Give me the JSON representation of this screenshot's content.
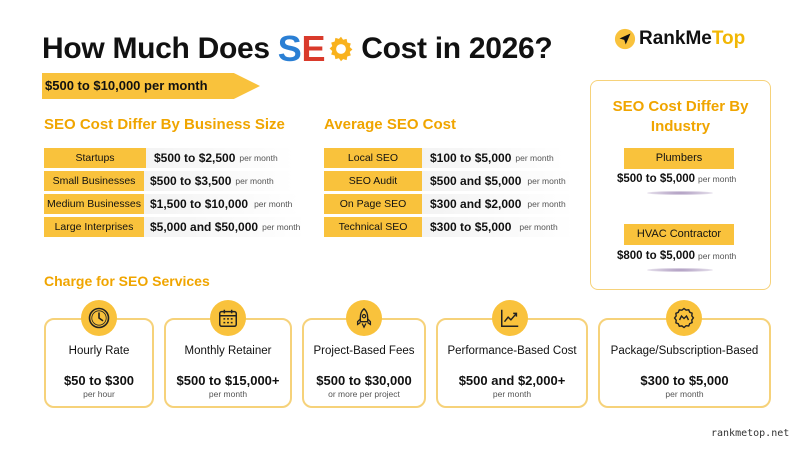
{
  "header": {
    "title_before": "How Much Does",
    "title_s": "S",
    "title_e": "E",
    "title_after": "Cost in 2026?",
    "brand_rank": "RankMe",
    "brand_top": "Top",
    "range": "$500 to $10,000 per month"
  },
  "business_size": {
    "heading": "SEO Cost Differ By Business Size",
    "rows": [
      {
        "label": "Startups",
        "price": "$500 to $2,500",
        "per": "per month"
      },
      {
        "label": "Small Businesses",
        "price": "$500 to $3,500",
        "per": "per month"
      },
      {
        "label": "Medium Businesses",
        "price": "$1,500 to $10,000",
        "per": "per month"
      },
      {
        "label": "Large Interprises",
        "price": "$5,000 and $50,000",
        "per": "per month"
      }
    ]
  },
  "average_cost": {
    "heading": "Average SEO Cost",
    "rows": [
      {
        "label": "Local SEO",
        "price": "$100 to $5,000",
        "per": "per month"
      },
      {
        "label": "SEO Audit",
        "price": "$500 and $5,000",
        "per": "per month"
      },
      {
        "label": "On Page SEO",
        "price": "$300 and $2,000",
        "per": "per month"
      },
      {
        "label": "Technical SEO",
        "price": "$300 to $5,000",
        "per": "per month"
      }
    ]
  },
  "industry": {
    "heading": "SEO Cost Differ By Industry",
    "items": [
      {
        "label": "Plumbers",
        "price": "$500 to $5,000",
        "per": "per month"
      },
      {
        "label": "HVAC Contractor",
        "price": "$800 to $5,000",
        "per": "per month"
      }
    ]
  },
  "services": {
    "heading": "Charge for SEO Services",
    "cards": [
      {
        "name": "Hourly Rate",
        "price": "$50 to $300",
        "per": "per hour",
        "icon": "clock-icon"
      },
      {
        "name": "Monthly Retainer",
        "price": "$500 to $15,000+",
        "per": "per month",
        "icon": "calendar-icon"
      },
      {
        "name": "Project-Based Fees",
        "price": "$500 to $30,000",
        "per": "or more per project",
        "icon": "rocket-icon"
      },
      {
        "name": "Performance-Based Cost",
        "price": "$500 and $2,000+",
        "per": "per month",
        "icon": "trend-chart-icon"
      },
      {
        "name": "Package/Subscription-Based",
        "price": "$300 to $5,000",
        "per": "per month",
        "icon": "badge-icon"
      }
    ]
  },
  "footer": {
    "site": "rankmetop.net"
  },
  "colors": {
    "accent_yellow": "#f9c23c",
    "heading_orange": "#f0a500",
    "seo_blue": "#2a7fd4",
    "seo_red": "#d93a2b"
  }
}
